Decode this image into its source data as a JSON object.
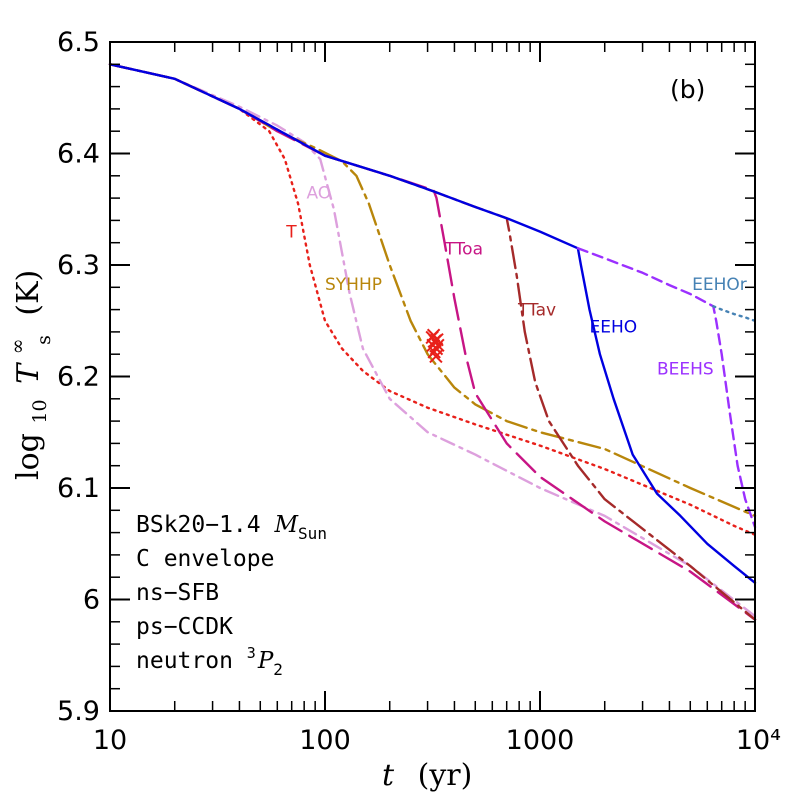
{
  "chart_data": {
    "type": "line",
    "panel_label": "(b)",
    "xlabel": {
      "var": "t",
      "unit": "(yr)"
    },
    "ylabel": {
      "prefix": "log",
      "sub": "10",
      "var": "T",
      "var_sup": "∞",
      "var_sub": "s",
      "unit": "(K)"
    },
    "xscale": "log",
    "xlim": [
      10,
      10000
    ],
    "ylim": [
      5.9,
      6.5
    ],
    "x_ticks": [
      {
        "value": 10,
        "label": "10"
      },
      {
        "value": 100,
        "label": "100"
      },
      {
        "value": 1000,
        "label": "1000"
      },
      {
        "value": 10000,
        "label": "10⁴"
      }
    ],
    "y_ticks": [
      {
        "value": 5.9,
        "label": "5.9"
      },
      {
        "value": 6.0,
        "label": "6"
      },
      {
        "value": 6.1,
        "label": "6.1"
      },
      {
        "value": 6.2,
        "label": "6.2"
      },
      {
        "value": 6.3,
        "label": "6.3"
      },
      {
        "value": 6.4,
        "label": "6.4"
      },
      {
        "value": 6.5,
        "label": "6.5"
      }
    ],
    "series": [
      {
        "name": "T",
        "color": "#e8201a",
        "dash": "dotted",
        "x": [
          10,
          20,
          40,
          55,
          65,
          75,
          85,
          100,
          120,
          150,
          200,
          300,
          500,
          1000,
          2000,
          5000,
          8000,
          10000
        ],
        "y": [
          6.48,
          6.467,
          6.44,
          6.42,
          6.395,
          6.355,
          6.3,
          6.25,
          6.225,
          6.205,
          6.187,
          6.172,
          6.157,
          6.138,
          6.117,
          6.085,
          6.066,
          6.058
        ]
      },
      {
        "name": "AO",
        "color": "#dda0dd",
        "dash": "dashdot",
        "x": [
          10,
          20,
          40,
          60,
          80,
          95,
          110,
          130,
          150,
          200,
          300,
          500,
          1000,
          2000,
          5000,
          10000
        ],
        "y": [
          6.48,
          6.467,
          6.442,
          6.425,
          6.41,
          6.395,
          6.35,
          6.275,
          6.225,
          6.18,
          6.15,
          6.13,
          6.1,
          6.075,
          6.03,
          5.985
        ]
      },
      {
        "name": "SYHHP",
        "color": "#b8860b",
        "dash": "longdashdot",
        "x": [
          10,
          20,
          40,
          60,
          90,
          120,
          140,
          160,
          200,
          250,
          300,
          400,
          500,
          700,
          1000,
          2000,
          5000,
          10000
        ],
        "y": [
          6.48,
          6.467,
          6.44,
          6.42,
          6.405,
          6.393,
          6.38,
          6.355,
          6.3,
          6.25,
          6.22,
          6.19,
          6.175,
          6.16,
          6.15,
          6.135,
          6.1,
          6.075
        ]
      },
      {
        "name": "TToa",
        "color": "#c71585",
        "dash": "longdash",
        "x": [
          10,
          20,
          40,
          60,
          100,
          200,
          320,
          330,
          360,
          400,
          450,
          500,
          700,
          1000,
          2000,
          5000,
          10000
        ],
        "y": [
          6.48,
          6.467,
          6.44,
          6.42,
          6.398,
          6.38,
          6.367,
          6.36,
          6.32,
          6.27,
          6.22,
          6.185,
          6.14,
          6.11,
          6.07,
          6.025,
          5.982
        ]
      },
      {
        "name": "TTav",
        "color": "#a52a2a",
        "dash": "longdashdot",
        "x": [
          10,
          20,
          40,
          100,
          200,
          320,
          500,
          700,
          720,
          780,
          850,
          950,
          1100,
          1500,
          2000,
          5000,
          10000
        ],
        "y": [
          6.48,
          6.467,
          6.44,
          6.398,
          6.38,
          6.366,
          6.352,
          6.342,
          6.33,
          6.29,
          6.24,
          6.195,
          6.16,
          6.12,
          6.09,
          6.03,
          5.982
        ]
      },
      {
        "name": "EEHO",
        "color": "#0000e0",
        "dash": "solid",
        "x": [
          10,
          20,
          40,
          100,
          200,
          320,
          500,
          700,
          1000,
          1500,
          1550,
          1700,
          1900,
          2200,
          2700,
          3500,
          4500,
          6000,
          8000,
          10000
        ],
        "y": [
          6.48,
          6.467,
          6.44,
          6.398,
          6.38,
          6.366,
          6.352,
          6.342,
          6.33,
          6.315,
          6.3,
          6.26,
          6.22,
          6.18,
          6.13,
          6.095,
          6.075,
          6.05,
          6.03,
          6.015
        ]
      },
      {
        "name": "BEEHS",
        "color": "#9b30ff",
        "dash": "shortdash",
        "x": [
          1500,
          2000,
          3000,
          4000,
          5000,
          6400,
          6600,
          7000,
          7600,
          8300,
          9000,
          10000
        ],
        "y": [
          6.315,
          6.306,
          6.293,
          6.282,
          6.274,
          6.263,
          6.25,
          6.22,
          6.17,
          6.12,
          6.09,
          6.065
        ]
      },
      {
        "name": "EEHOr",
        "color": "#4682b4",
        "dash": "dotted",
        "x": [
          6400,
          7000,
          8000,
          9000,
          10000
        ],
        "y": [
          6.263,
          6.26,
          6.256,
          6.253,
          6.25
        ]
      }
    ],
    "markers": {
      "symbol": "×",
      "color": "#e8201a",
      "points": [
        {
          "x": 320,
          "y": 6.237
        },
        {
          "x": 325,
          "y": 6.232
        },
        {
          "x": 318,
          "y": 6.228
        },
        {
          "x": 330,
          "y": 6.225
        },
        {
          "x": 322,
          "y": 6.222
        },
        {
          "x": 328,
          "y": 6.218
        },
        {
          "x": 335,
          "y": 6.228
        },
        {
          "x": 315,
          "y": 6.235
        },
        {
          "x": 332,
          "y": 6.233
        }
      ]
    },
    "annotations": [
      {
        "text": "AO",
        "color": "#dda0dd",
        "x": 82,
        "y": 6.365
      },
      {
        "text": "T",
        "color": "#e8201a",
        "x": 66,
        "y": 6.33
      },
      {
        "text": "SYHHP",
        "color": "#b8860b",
        "x": 100,
        "y": 6.283
      },
      {
        "text": "TToa",
        "color": "#c71585",
        "x": 360,
        "y": 6.315
      },
      {
        "text": "TTav",
        "color": "#a52a2a",
        "x": 790,
        "y": 6.26
      },
      {
        "text": "EEHO",
        "color": "#0000e0",
        "x": 1700,
        "y": 6.245
      },
      {
        "text": "BEEHS",
        "color": "#9b30ff",
        "x": 3500,
        "y": 6.207
      },
      {
        "text": "EEHOr",
        "color": "#4682b4",
        "x": 5100,
        "y": 6.283
      }
    ],
    "info_lines": [
      {
        "text": "BSk20−1.4 ",
        "var": "M",
        "sub": "Sun"
      },
      {
        "text": "C envelope"
      },
      {
        "text": "ns−SFB"
      },
      {
        "text": "ps−CCDK"
      },
      {
        "text": "neutron ",
        "sup": "3",
        "var": "P",
        "sub": "2"
      }
    ]
  }
}
